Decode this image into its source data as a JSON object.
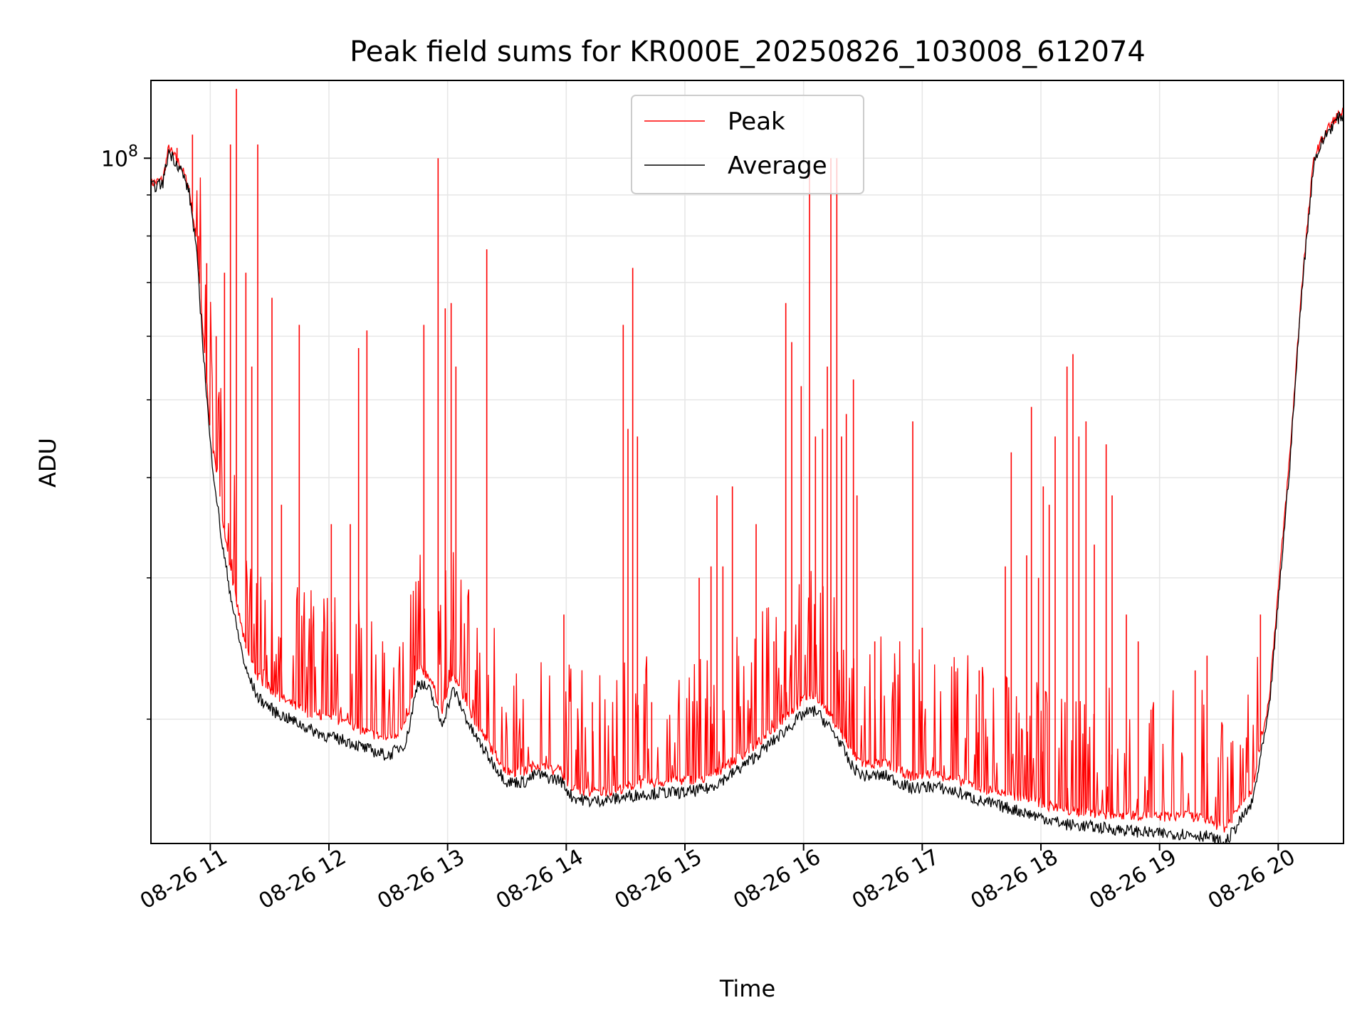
{
  "chart_data": {
    "type": "line",
    "title": "Peak field sums for KR000E_20250826_103008_612074",
    "xlabel": "Time",
    "ylabel": "ADU",
    "x_tick_labels": [
      "08-26 11",
      "08-26 12",
      "08-26 13",
      "08-26 14",
      "08-26 15",
      "08-26 16",
      "08-26 17",
      "08-26 18",
      "08-26 19",
      "08-26 20"
    ],
    "x_tick_hours": [
      11,
      12,
      13,
      14,
      15,
      16,
      17,
      18,
      19,
      20
    ],
    "xlim_hours": [
      10.5,
      20.55
    ],
    "y_scale": "log",
    "ylim": [
      14000000,
      125000000
    ],
    "y_tick_label": {
      "base": "10",
      "exponent": "8"
    },
    "y_tick_value": 100000000,
    "y_minor_ticks": [
      20000000,
      30000000,
      40000000,
      50000000,
      60000000,
      70000000,
      80000000,
      90000000
    ],
    "grid": true,
    "legend_position": "top-center",
    "series": [
      {
        "name": "Peak",
        "color": "#ff0000",
        "points": [
          [
            10.5,
            93000000
          ],
          [
            10.6,
            94000000
          ],
          [
            10.65,
            103000000
          ],
          [
            10.75,
            98000000
          ],
          [
            10.82,
            92000000
          ],
          [
            10.88,
            80000000
          ],
          [
            10.94,
            60000000
          ],
          [
            11.0,
            46000000
          ],
          [
            11.1,
            36000000
          ],
          [
            11.2,
            29000000
          ],
          [
            11.3,
            24500000
          ],
          [
            11.4,
            22600000
          ],
          [
            11.55,
            21500000
          ],
          [
            11.7,
            20800000
          ],
          [
            11.85,
            20300000
          ],
          [
            12.0,
            20000000
          ],
          [
            12.15,
            19800000
          ],
          [
            12.3,
            19300000
          ],
          [
            12.5,
            18900000
          ],
          [
            12.65,
            19600000
          ],
          [
            12.75,
            23200000
          ],
          [
            12.85,
            22600000
          ],
          [
            12.95,
            20500000
          ],
          [
            13.05,
            22800000
          ],
          [
            13.2,
            20200000
          ],
          [
            13.35,
            18600000
          ],
          [
            13.5,
            17200000
          ],
          [
            13.65,
            17200000
          ],
          [
            13.75,
            17600000
          ],
          [
            13.85,
            17300000
          ],
          [
            13.95,
            17200000
          ],
          [
            14.05,
            16400000
          ],
          [
            14.2,
            16200000
          ],
          [
            14.4,
            16300000
          ],
          [
            14.6,
            16600000
          ],
          [
            14.8,
            16700000
          ],
          [
            15.0,
            16800000
          ],
          [
            15.2,
            16900000
          ],
          [
            15.4,
            17700000
          ],
          [
            15.6,
            18600000
          ],
          [
            15.8,
            19800000
          ],
          [
            16.0,
            21200000
          ],
          [
            16.1,
            21500000
          ],
          [
            16.2,
            20500000
          ],
          [
            16.3,
            19500000
          ],
          [
            16.4,
            18200000
          ],
          [
            16.5,
            17600000
          ],
          [
            16.7,
            17600000
          ],
          [
            16.9,
            17000000
          ],
          [
            17.1,
            17100000
          ],
          [
            17.3,
            16800000
          ],
          [
            17.5,
            16400000
          ],
          [
            17.8,
            16000000
          ],
          [
            18.0,
            15700000
          ],
          [
            18.2,
            15400000
          ],
          [
            18.4,
            15300000
          ],
          [
            18.6,
            15200000
          ],
          [
            18.8,
            15200000
          ],
          [
            19.0,
            15100000
          ],
          [
            19.2,
            15200000
          ],
          [
            19.4,
            15000000
          ],
          [
            19.55,
            14600000
          ],
          [
            19.7,
            15800000
          ],
          [
            19.78,
            16400000
          ],
          [
            19.85,
            18700000
          ],
          [
            19.92,
            21000000
          ],
          [
            20.0,
            29000000
          ],
          [
            20.1,
            43000000
          ],
          [
            20.2,
            70000000
          ],
          [
            20.3,
            100000000
          ],
          [
            20.4,
            108000000
          ],
          [
            20.5,
            113000000
          ],
          [
            20.55,
            114000000
          ]
        ]
      },
      {
        "name": "Average",
        "color": "#000000",
        "points": [
          [
            10.5,
            92000000
          ],
          [
            10.6,
            93000000
          ],
          [
            10.65,
            102000000
          ],
          [
            10.75,
            97000000
          ],
          [
            10.82,
            91000000
          ],
          [
            10.88,
            78000000
          ],
          [
            10.94,
            58000000
          ],
          [
            11.0,
            44000000
          ],
          [
            11.1,
            33000000
          ],
          [
            11.2,
            27000000
          ],
          [
            11.3,
            23000000
          ],
          [
            11.4,
            21300000
          ],
          [
            11.55,
            20400000
          ],
          [
            11.7,
            19900000
          ],
          [
            11.85,
            19400000
          ],
          [
            12.0,
            19000000
          ],
          [
            12.15,
            18800000
          ],
          [
            12.3,
            18400000
          ],
          [
            12.5,
            18000000
          ],
          [
            12.65,
            18700000
          ],
          [
            12.75,
            22300000
          ],
          [
            12.85,
            21700000
          ],
          [
            12.95,
            19700000
          ],
          [
            13.05,
            21800000
          ],
          [
            13.2,
            19400000
          ],
          [
            13.35,
            17900000
          ],
          [
            13.5,
            16700000
          ],
          [
            13.65,
            16700000
          ],
          [
            13.75,
            17100000
          ],
          [
            13.85,
            16900000
          ],
          [
            13.95,
            16800000
          ],
          [
            14.05,
            16000000
          ],
          [
            14.2,
            15800000
          ],
          [
            14.4,
            15900000
          ],
          [
            14.6,
            16100000
          ],
          [
            14.8,
            16200000
          ],
          [
            15.0,
            16200000
          ],
          [
            15.2,
            16400000
          ],
          [
            15.4,
            17100000
          ],
          [
            15.6,
            18000000
          ],
          [
            15.8,
            19100000
          ],
          [
            16.0,
            20300000
          ],
          [
            16.1,
            20500000
          ],
          [
            16.2,
            19700000
          ],
          [
            16.3,
            18800000
          ],
          [
            16.4,
            17500000
          ],
          [
            16.5,
            17000000
          ],
          [
            16.7,
            17000000
          ],
          [
            16.9,
            16400000
          ],
          [
            17.1,
            16500000
          ],
          [
            17.3,
            16200000
          ],
          [
            17.5,
            15800000
          ],
          [
            17.8,
            15400000
          ],
          [
            18.0,
            15100000
          ],
          [
            18.2,
            14800000
          ],
          [
            18.4,
            14700000
          ],
          [
            18.6,
            14600000
          ],
          [
            18.8,
            14500000
          ],
          [
            19.0,
            14400000
          ],
          [
            19.2,
            14400000
          ],
          [
            19.4,
            14300000
          ],
          [
            19.55,
            14000000
          ],
          [
            19.7,
            15100000
          ],
          [
            19.78,
            15700000
          ],
          [
            19.85,
            17900000
          ],
          [
            19.92,
            20300000
          ],
          [
            20.0,
            28000000
          ],
          [
            20.1,
            42000000
          ],
          [
            20.2,
            69000000
          ],
          [
            20.3,
            99000000
          ],
          [
            20.4,
            107000000
          ],
          [
            20.5,
            112000000
          ],
          [
            20.55,
            113000000
          ]
        ]
      }
    ],
    "peak_spikes": [
      [
        10.72,
        103000000
      ],
      [
        10.85,
        107000000
      ],
      [
        10.9,
        80000000
      ],
      [
        10.97,
        74000000
      ],
      [
        11.05,
        60000000
      ],
      [
        11.12,
        72000000
      ],
      [
        11.17,
        104000000
      ],
      [
        11.22,
        122000000
      ],
      [
        11.3,
        72000000
      ],
      [
        11.35,
        55000000
      ],
      [
        11.4,
        104000000
      ],
      [
        11.52,
        67000000
      ],
      [
        11.6,
        37000000
      ],
      [
        11.75,
        62000000
      ],
      [
        12.02,
        35000000
      ],
      [
        12.18,
        35000000
      ],
      [
        12.25,
        58000000
      ],
      [
        12.32,
        61000000
      ],
      [
        12.72,
        24000000
      ],
      [
        12.8,
        62000000
      ],
      [
        12.92,
        100000000
      ],
      [
        12.98,
        65000000
      ],
      [
        13.03,
        66000000
      ],
      [
        13.07,
        55000000
      ],
      [
        13.33,
        77000000
      ],
      [
        13.98,
        27000000
      ],
      [
        14.1,
        20000000
      ],
      [
        14.22,
        21000000
      ],
      [
        14.48,
        62000000
      ],
      [
        14.52,
        46000000
      ],
      [
        14.56,
        73000000
      ],
      [
        14.6,
        45000000
      ],
      [
        14.72,
        21000000
      ],
      [
        15.12,
        30000000
      ],
      [
        15.22,
        31000000
      ],
      [
        15.27,
        38000000
      ],
      [
        15.32,
        31000000
      ],
      [
        15.4,
        39000000
      ],
      [
        15.6,
        35000000
      ],
      [
        15.75,
        25000000
      ],
      [
        15.85,
        66000000
      ],
      [
        15.9,
        59000000
      ],
      [
        15.98,
        52000000
      ],
      [
        16.05,
        98000000
      ],
      [
        16.1,
        45000000
      ],
      [
        16.16,
        46000000
      ],
      [
        16.2,
        55000000
      ],
      [
        16.23,
        100000000
      ],
      [
        16.28,
        100000000
      ],
      [
        16.32,
        45000000
      ],
      [
        16.36,
        48000000
      ],
      [
        16.42,
        53000000
      ],
      [
        16.45,
        38000000
      ],
      [
        16.6,
        25000000
      ],
      [
        16.92,
        47000000
      ],
      [
        17.0,
        26000000
      ],
      [
        17.48,
        23000000
      ],
      [
        17.7,
        31000000
      ],
      [
        17.75,
        43000000
      ],
      [
        17.88,
        32000000
      ],
      [
        17.92,
        49000000
      ],
      [
        17.98,
        30000000
      ],
      [
        18.02,
        39000000
      ],
      [
        18.07,
        37000000
      ],
      [
        18.12,
        45000000
      ],
      [
        18.22,
        55000000
      ],
      [
        18.27,
        57000000
      ],
      [
        18.32,
        45000000
      ],
      [
        18.38,
        47000000
      ],
      [
        18.45,
        33000000
      ],
      [
        18.55,
        44000000
      ],
      [
        18.6,
        38000000
      ],
      [
        18.72,
        27000000
      ],
      [
        18.82,
        25000000
      ],
      [
        19.3,
        23000000
      ],
      [
        19.4,
        24000000
      ],
      [
        19.85,
        27000000
      ]
    ],
    "legend": [
      {
        "label": "Peak",
        "color": "#ff0000"
      },
      {
        "label": "Average",
        "color": "#000000"
      }
    ]
  }
}
